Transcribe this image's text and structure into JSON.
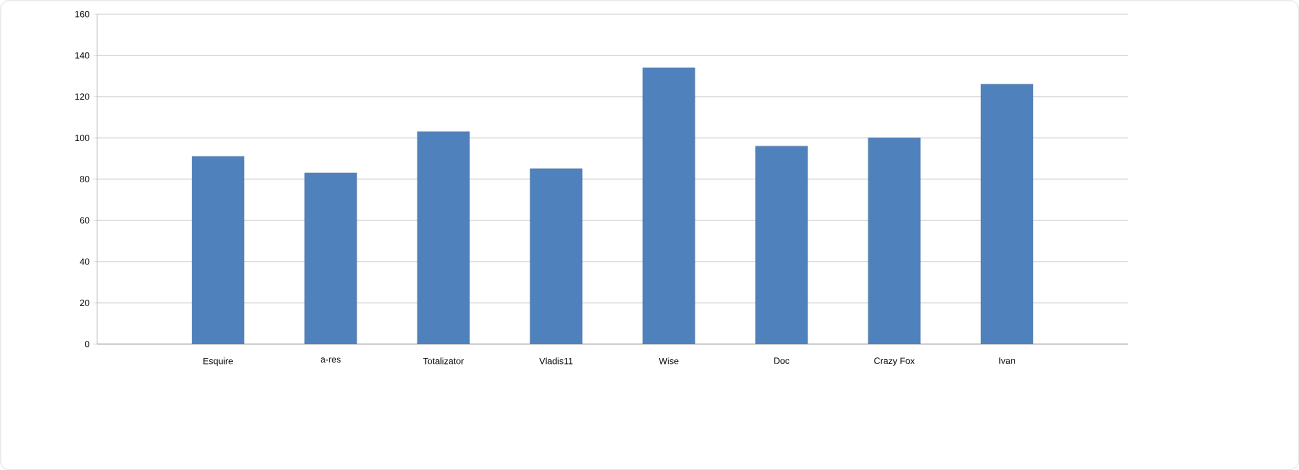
{
  "chart_data": {
    "type": "bar",
    "categories": [
      "Esquire",
      "a-res",
      "Totalizator",
      "Vladis11",
      "Wise",
      "Doc",
      "Crazy Fox",
      "Ivan"
    ],
    "values": [
      91,
      83,
      103,
      85,
      134,
      96,
      100,
      126
    ],
    "color": "#4f81bd",
    "ylim": [
      0,
      160
    ],
    "yticks": [
      0,
      20,
      40,
      60,
      80,
      100,
      120,
      140,
      160
    ],
    "grid": "y"
  }
}
